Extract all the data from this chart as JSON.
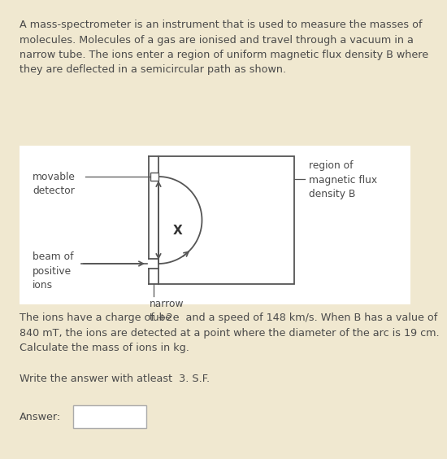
{
  "bg_color": "#f0e8d0",
  "diagram_bg": "#ffffff",
  "text_color": "#4a4a4a",
  "line_color": "#555555",
  "title_text": "A mass-spectrometer is an instrument that is used to measure the masses of\nmolecules. Molecules of a gas are ionised and travel through a vacuum in a\nnarrow tube. The ions enter a region of uniform magnetic flux density B where\nthey are deflected in a semicircular path as shown.",
  "body_text": "The ions have a charge of +2e  and a speed of 148 km/s. When B has a value of\n840 mT, the ions are detected at a point where the diameter of the arc is 19 cm.\nCalculate the mass of ions in kg.",
  "sf_text": "Write the answer with atleast  3. S.F.",
  "answer_label": "Answer:",
  "label_movable": "movable\ndetector",
  "label_beam": "beam of\npositive\nions",
  "label_narrow": "narrow\ntube",
  "label_region": "region of\nmagnetic flux\ndensity B",
  "label_x": "X",
  "font_size_main": 9.2,
  "font_size_diagram": 8.8
}
